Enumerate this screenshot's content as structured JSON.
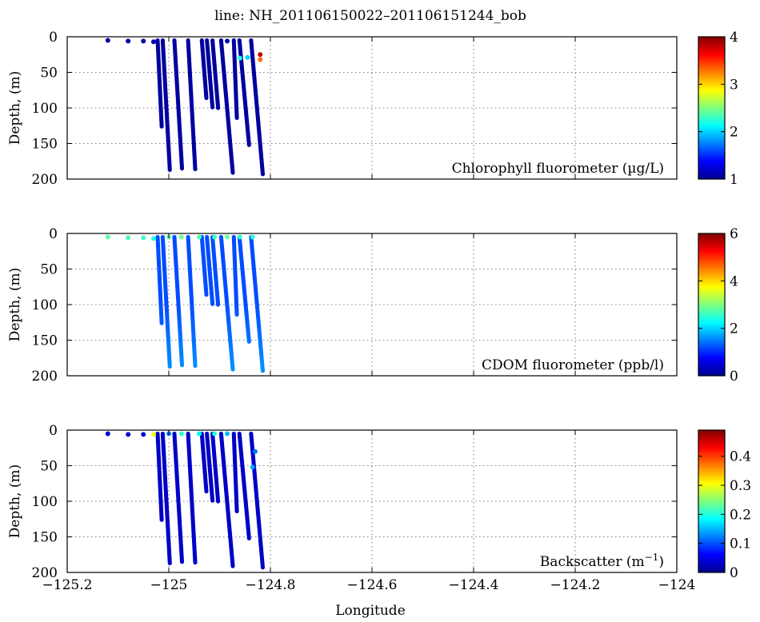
{
  "figure": {
    "title": "line: NH_201106150022–201106151244_bob",
    "xlabel": "Longitude"
  },
  "colors": {
    "colormap": [
      "#00008f",
      "#0000ff",
      "#007fff",
      "#00ffff",
      "#7fff7f",
      "#ffff00",
      "#ff7f00",
      "#ff0000",
      "#7f0000"
    ]
  },
  "chart_data": [
    {
      "type": "scatter",
      "label": "Chlorophyll fluorometer (µg/L)",
      "ylabel": "Depth, (m)",
      "xlim": [
        -125.2,
        -124.0
      ],
      "ylim": [
        0,
        200
      ],
      "y_reversed": true,
      "grid": true,
      "xticks": [
        -125.2,
        -125.0,
        -124.8,
        -124.6,
        -124.4,
        -124.2,
        -124.0
      ],
      "yticks": [
        0,
        50,
        100,
        150,
        200
      ],
      "colorbar": {
        "range": [
          1,
          4
        ],
        "ticks": [
          1,
          2,
          3,
          4
        ],
        "tick_labels": [
          "1",
          "2",
          "3",
          "4"
        ]
      },
      "background_value": 1.05,
      "surface_points": [
        {
          "lon": -125.12,
          "depth": 5,
          "value": 1.05
        },
        {
          "lon": -125.08,
          "depth": 6,
          "value": 1.05
        },
        {
          "lon": -125.05,
          "depth": 6,
          "value": 1.05
        },
        {
          "lon": -125.03,
          "depth": 7,
          "value": 1.1
        },
        {
          "lon": -124.885,
          "depth": 6,
          "value": 1.1
        },
        {
          "lon": -124.86,
          "depth": 30,
          "value": 2.2
        },
        {
          "lon": -124.845,
          "depth": 29,
          "value": 2.0
        },
        {
          "lon": -124.82,
          "depth": 25,
          "value": 3.8
        },
        {
          "lon": -124.82,
          "depth": 32,
          "value": 3.3
        }
      ],
      "profiles": [
        {
          "lon_top": -125.022,
          "lon_bottom": -125.014,
          "depth_top": 5,
          "depth_bottom": 126
        },
        {
          "lon_top": -125.012,
          "lon_bottom": -124.998,
          "depth_top": 5,
          "depth_bottom": 187
        },
        {
          "lon_top": -124.989,
          "lon_bottom": -124.974,
          "depth_top": 5,
          "depth_bottom": 185
        },
        {
          "lon_top": -124.962,
          "lon_bottom": -124.948,
          "depth_top": 5,
          "depth_bottom": 186
        },
        {
          "lon_top": -124.935,
          "lon_bottom": -124.926,
          "depth_top": 5,
          "depth_bottom": 86
        },
        {
          "lon_top": -124.925,
          "lon_bottom": -124.914,
          "depth_top": 5,
          "depth_bottom": 99
        },
        {
          "lon_top": -124.914,
          "lon_bottom": -124.903,
          "depth_top": 5,
          "depth_bottom": 100
        },
        {
          "lon_top": -124.897,
          "lon_bottom": -124.874,
          "depth_top": 5,
          "depth_bottom": 191
        },
        {
          "lon_top": -124.872,
          "lon_bottom": -124.866,
          "depth_top": 5,
          "depth_bottom": 114
        },
        {
          "lon_top": -124.861,
          "lon_bottom": -124.842,
          "depth_top": 5,
          "depth_bottom": 152
        },
        {
          "lon_top": -124.838,
          "lon_bottom": -124.815,
          "depth_top": 5,
          "depth_bottom": 193
        }
      ]
    },
    {
      "type": "scatter",
      "label": "CDOM fluorometer (ppb/l)",
      "ylabel": "Depth, (m)",
      "xlim": [
        -125.2,
        -124.0
      ],
      "ylim": [
        0,
        200
      ],
      "y_reversed": true,
      "grid": true,
      "xticks": [
        -125.2,
        -125.0,
        -124.8,
        -124.6,
        -124.4,
        -124.2,
        -124.0
      ],
      "yticks": [
        0,
        50,
        100,
        150,
        200
      ],
      "colorbar": {
        "range": [
          0,
          6
        ],
        "ticks": [
          0,
          2,
          4,
          6
        ],
        "tick_labels": [
          "0",
          "2",
          "4",
          "6"
        ]
      },
      "background_value": 1.2,
      "deep_value": 1.6,
      "surface_points": [
        {
          "lon": -125.12,
          "depth": 5,
          "value": 2.8
        },
        {
          "lon": -125.08,
          "depth": 6,
          "value": 2.7
        },
        {
          "lon": -125.05,
          "depth": 6,
          "value": 2.6
        },
        {
          "lon": -125.03,
          "depth": 7,
          "value": 2.4
        },
        {
          "lon": -125.0,
          "depth": 5,
          "value": 2.8
        },
        {
          "lon": -124.975,
          "depth": 5,
          "value": 2.9
        },
        {
          "lon": -124.94,
          "depth": 5,
          "value": 2.7
        },
        {
          "lon": -124.91,
          "depth": 5,
          "value": 2.6
        },
        {
          "lon": -124.885,
          "depth": 5,
          "value": 2.9
        },
        {
          "lon": -124.86,
          "depth": 5,
          "value": 2.6
        },
        {
          "lon": -124.835,
          "depth": 5,
          "value": 2.5
        }
      ],
      "profiles": [
        {
          "lon_top": -125.022,
          "lon_bottom": -125.014,
          "depth_top": 5,
          "depth_bottom": 126
        },
        {
          "lon_top": -125.012,
          "lon_bottom": -124.998,
          "depth_top": 5,
          "depth_bottom": 187
        },
        {
          "lon_top": -124.989,
          "lon_bottom": -124.974,
          "depth_top": 5,
          "depth_bottom": 185
        },
        {
          "lon_top": -124.962,
          "lon_bottom": -124.948,
          "depth_top": 5,
          "depth_bottom": 186
        },
        {
          "lon_top": -124.935,
          "lon_bottom": -124.926,
          "depth_top": 5,
          "depth_bottom": 86
        },
        {
          "lon_top": -124.925,
          "lon_bottom": -124.914,
          "depth_top": 5,
          "depth_bottom": 99
        },
        {
          "lon_top": -124.914,
          "lon_bottom": -124.903,
          "depth_top": 5,
          "depth_bottom": 100
        },
        {
          "lon_top": -124.897,
          "lon_bottom": -124.874,
          "depth_top": 5,
          "depth_bottom": 191
        },
        {
          "lon_top": -124.872,
          "lon_bottom": -124.866,
          "depth_top": 5,
          "depth_bottom": 114
        },
        {
          "lon_top": -124.861,
          "lon_bottom": -124.842,
          "depth_top": 5,
          "depth_bottom": 152
        },
        {
          "lon_top": -124.838,
          "lon_bottom": -124.815,
          "depth_top": 5,
          "depth_bottom": 193
        }
      ]
    },
    {
      "type": "scatter",
      "label_main": "Backscatter (m",
      "label_sup": "−1",
      "label_end": ")",
      "ylabel": "Depth, (m)",
      "xlim": [
        -125.2,
        -124.0
      ],
      "ylim": [
        0,
        200
      ],
      "y_reversed": true,
      "grid": true,
      "xticks": [
        -125.2,
        -125.0,
        -124.8,
        -124.6,
        -124.4,
        -124.2,
        -124.0
      ],
      "xtick_labels": [
        "−125.2",
        "−125",
        "−124.8",
        "−124.6",
        "−124.4",
        "−124.2",
        "−124"
      ],
      "yticks": [
        0,
        50,
        100,
        150,
        200
      ],
      "colorbar": {
        "range": [
          0,
          0.49
        ],
        "ticks": [
          0,
          0.1,
          0.2,
          0.3,
          0.4
        ],
        "tick_labels": [
          "0",
          "0.1",
          "0.2",
          "0.3",
          "0.4"
        ]
      },
      "background_value": 0.03,
      "surface_points": [
        {
          "lon": -125.12,
          "depth": 5,
          "value": 0.03
        },
        {
          "lon": -125.08,
          "depth": 6,
          "value": 0.03
        },
        {
          "lon": -125.05,
          "depth": 6,
          "value": 0.03
        },
        {
          "lon": -125.03,
          "depth": 6,
          "value": 0.3
        },
        {
          "lon": -125.0,
          "depth": 5,
          "value": 0.12
        },
        {
          "lon": -124.975,
          "depth": 5,
          "value": 0.2
        },
        {
          "lon": -124.94,
          "depth": 5,
          "value": 0.18
        },
        {
          "lon": -124.91,
          "depth": 5,
          "value": 0.2
        },
        {
          "lon": -124.885,
          "depth": 5,
          "value": 0.15
        },
        {
          "lon": -124.835,
          "depth": 52,
          "value": 0.14
        },
        {
          "lon": -124.83,
          "depth": 30,
          "value": 0.12
        }
      ],
      "profiles": [
        {
          "lon_top": -125.022,
          "lon_bottom": -125.014,
          "depth_top": 5,
          "depth_bottom": 126
        },
        {
          "lon_top": -125.012,
          "lon_bottom": -124.998,
          "depth_top": 5,
          "depth_bottom": 187
        },
        {
          "lon_top": -124.989,
          "lon_bottom": -124.974,
          "depth_top": 5,
          "depth_bottom": 185
        },
        {
          "lon_top": -124.962,
          "lon_bottom": -124.948,
          "depth_top": 5,
          "depth_bottom": 186
        },
        {
          "lon_top": -124.935,
          "lon_bottom": -124.926,
          "depth_top": 5,
          "depth_bottom": 86
        },
        {
          "lon_top": -124.925,
          "lon_bottom": -124.914,
          "depth_top": 5,
          "depth_bottom": 99
        },
        {
          "lon_top": -124.914,
          "lon_bottom": -124.903,
          "depth_top": 5,
          "depth_bottom": 100
        },
        {
          "lon_top": -124.897,
          "lon_bottom": -124.874,
          "depth_top": 5,
          "depth_bottom": 191
        },
        {
          "lon_top": -124.872,
          "lon_bottom": -124.866,
          "depth_top": 5,
          "depth_bottom": 114
        },
        {
          "lon_top": -124.861,
          "lon_bottom": -124.842,
          "depth_top": 5,
          "depth_bottom": 152
        },
        {
          "lon_top": -124.838,
          "lon_bottom": -124.815,
          "depth_top": 5,
          "depth_bottom": 193
        }
      ]
    }
  ]
}
